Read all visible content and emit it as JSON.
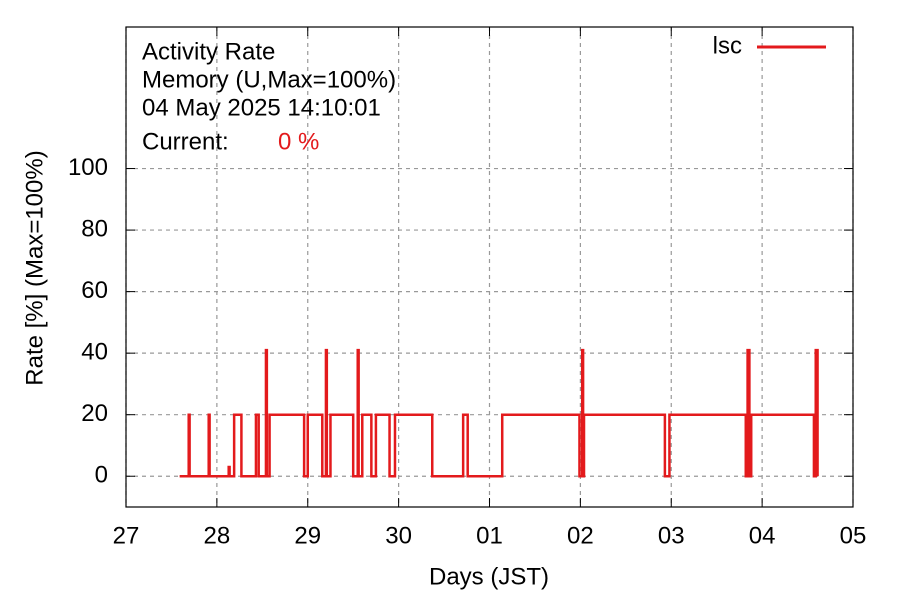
{
  "chart_data": {
    "type": "line",
    "title": "Activity Rate",
    "subtitle": "Memory (U,Max=100%)",
    "timestamp": "04 May 2025 14:10:01",
    "current_label": "Current:",
    "current_value": "0 %",
    "x_label": "Days (JST)",
    "y_label": "Rate [%]  (Max=100%)",
    "xlim": [
      0,
      8
    ],
    "xticks": [
      {
        "value": 0,
        "label": "27"
      },
      {
        "value": 1,
        "label": "28"
      },
      {
        "value": 2,
        "label": "29"
      },
      {
        "value": 3,
        "label": "30"
      },
      {
        "value": 4,
        "label": "01"
      },
      {
        "value": 5,
        "label": "02"
      },
      {
        "value": 6,
        "label": "03"
      },
      {
        "value": 7,
        "label": "04"
      },
      {
        "value": 8,
        "label": "05"
      }
    ],
    "ylim": [
      -10,
      146
    ],
    "yticks": [
      0,
      20,
      40,
      60,
      80,
      100
    ],
    "grid": true,
    "legend": "top-right",
    "series": [
      {
        "name": "lsc",
        "color": "#e31a1c",
        "x": [
          0.59,
          0.69,
          0.69,
          0.7,
          0.7,
          0.91,
          0.91,
          0.92,
          0.92,
          1.13,
          1.13,
          1.14,
          1.14,
          1.19,
          1.19,
          1.27,
          1.27,
          1.43,
          1.43,
          1.46,
          1.46,
          1.54,
          1.54,
          1.55,
          1.55,
          1.58,
          1.58,
          1.96,
          1.96,
          2.0,
          2.0,
          2.16,
          2.16,
          2.2,
          2.2,
          2.21,
          2.21,
          2.25,
          2.25,
          2.5,
          2.5,
          2.55,
          2.55,
          2.56,
          2.56,
          2.6,
          2.6,
          2.7,
          2.7,
          2.75,
          2.75,
          2.9,
          2.9,
          2.96,
          2.96,
          3.37,
          3.37,
          3.71,
          3.71,
          3.76,
          3.76,
          4.14,
          4.14,
          4.99,
          4.99,
          5.02,
          5.02,
          5.03,
          5.03,
          5.04,
          5.04,
          5.93,
          5.93,
          5.98,
          5.98,
          6.82,
          6.82,
          6.84,
          6.84,
          6.86,
          6.86,
          6.88,
          6.88,
          7.57,
          7.57,
          7.59,
          7.59,
          7.61,
          7.61
        ],
        "values": [
          0,
          0,
          20,
          20,
          0,
          0,
          20,
          20,
          0,
          0,
          3,
          3,
          0,
          0,
          20,
          20,
          0,
          0,
          20,
          20,
          0,
          0,
          41,
          41,
          0,
          0,
          20,
          20,
          0,
          0,
          20,
          20,
          0,
          0,
          41,
          41,
          0,
          0,
          20,
          20,
          0,
          0,
          41,
          41,
          0,
          0,
          20,
          20,
          0,
          0,
          20,
          20,
          0,
          0,
          20,
          20,
          0,
          0,
          20,
          20,
          0,
          0,
          20,
          20,
          0,
          0,
          41,
          41,
          0,
          0,
          20,
          20,
          0,
          0,
          20,
          20,
          0,
          0,
          41,
          41,
          0,
          0,
          20,
          20,
          0,
          0,
          41,
          41,
          0
        ]
      }
    ]
  }
}
